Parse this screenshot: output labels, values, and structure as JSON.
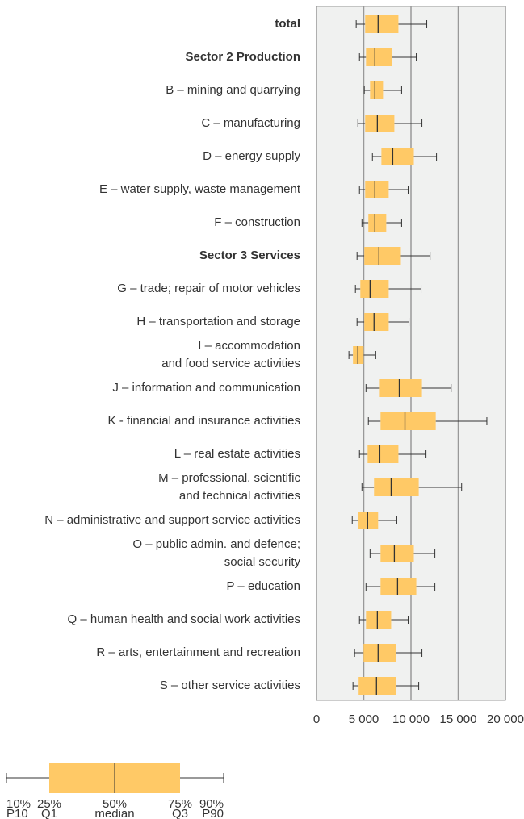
{
  "chart_data": {
    "type": "box",
    "categories": [
      [
        "total"
      ],
      [
        "Sector 2 Production"
      ],
      [
        "B – mining and quarrying"
      ],
      [
        "C – manufacturing"
      ],
      [
        "D – energy supply"
      ],
      [
        "E – water supply, waste management"
      ],
      [
        "F – construction"
      ],
      [
        "Sector 3 Services"
      ],
      [
        "G – trade; repair of motor vehicles"
      ],
      [
        "H – transportation and storage"
      ],
      [
        "I – accommodation",
        "and food service activities"
      ],
      [
        "J – information and communication"
      ],
      [
        "K - financial and insurance activities"
      ],
      [
        "L – real estate activities"
      ],
      [
        "M – professional, scientific",
        "and technical activities"
      ],
      [
        "N – administrative and support service activities"
      ],
      [
        "O – public admin. and defence;",
        "social security"
      ],
      [
        "P – education"
      ],
      [
        "Q – human health and social work activities"
      ],
      [
        "R – arts, entertainment and recreation"
      ],
      [
        "S – other service activities"
      ]
    ],
    "bold_categories": [
      0,
      1,
      7
    ],
    "p10": [
      4200,
      4550,
      5060,
      4380,
      5920,
      4550,
      4810,
      4290,
      4120,
      4290,
      3430,
      5240,
      5490,
      4550,
      4810,
      3780,
      5670,
      5240,
      4550,
      4030,
      3860
    ],
    "q1": [
      5150,
      5240,
      5670,
      5150,
      6870,
      5150,
      5490,
      5060,
      4640,
      5060,
      3860,
      6700,
      6780,
      5410,
      6090,
      4380,
      6780,
      6780,
      5240,
      4980,
      4460
    ],
    "median": [
      6520,
      6180,
      6180,
      6440,
      8070,
      6180,
      6180,
      6610,
      5670,
      6090,
      4380,
      8760,
      9360,
      6700,
      7900,
      5410,
      8240,
      8580,
      6440,
      6520,
      6350
    ],
    "q3": [
      8670,
      7980,
      7040,
      8240,
      10300,
      7640,
      7380,
      8930,
      7640,
      7640,
      4980,
      11160,
      12620,
      8670,
      10820,
      6520,
      10300,
      10560,
      7900,
      8410,
      8410
    ],
    "p90": [
      11670,
      10560,
      9010,
      11160,
      12700,
      9700,
      9010,
      12020,
      11070,
      9790,
      6270,
      14250,
      18030,
      11590,
      15360,
      8500,
      12530,
      12530,
      9700,
      11160,
      10820
    ],
    "color": "#ffc966",
    "xlim": [
      0,
      20000
    ],
    "xticks": [
      0,
      {
        "value": 5000,
        "label": "5 000"
      },
      {
        "value": 10000,
        "label": "10 000"
      },
      {
        "value": 15000,
        "label": "15 000"
      },
      {
        "value": 20000,
        "label": "20 000"
      }
    ],
    "grid": true,
    "legend": {
      "percent_labels": [
        "10%",
        "25%",
        "50%",
        "75%",
        "90%"
      ],
      "stat_labels": [
        "P10",
        "Q1",
        "median",
        "Q3",
        "P90"
      ]
    }
  }
}
